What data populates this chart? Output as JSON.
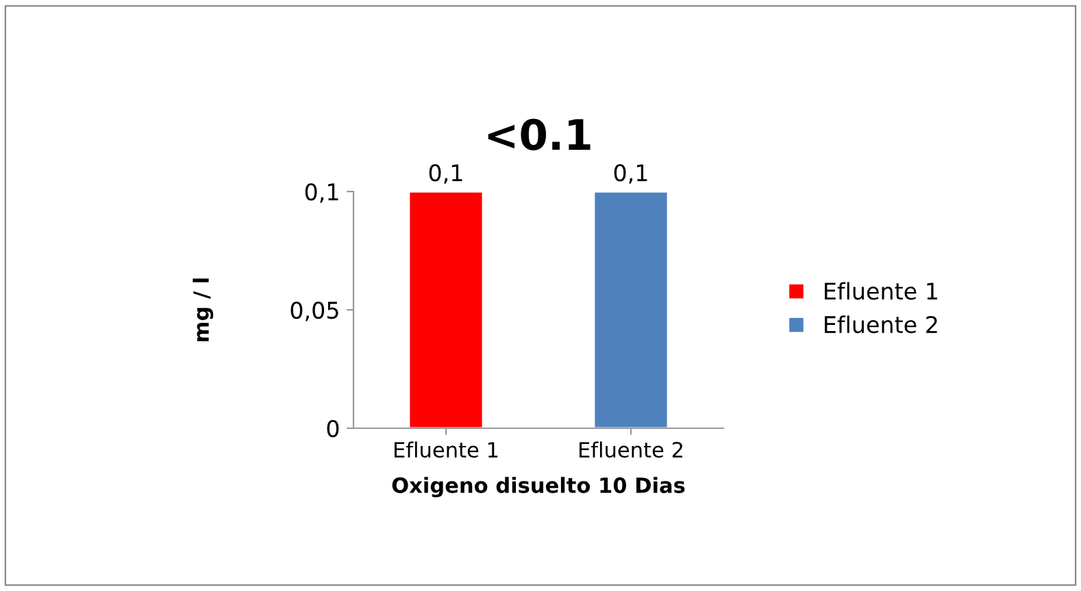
{
  "chart_data": {
    "type": "bar",
    "title": "<0.1",
    "xlabel": "Oxigeno disuelto 10 Dias",
    "ylabel": "mg / l",
    "categories": [
      "Efluente 1",
      "Efluente 2"
    ],
    "series": [
      {
        "name": "Efluente 1",
        "color": "#ff0000",
        "values": [
          0.1,
          null
        ],
        "value_labels": [
          "0,1",
          null
        ]
      },
      {
        "name": "Efluente 2",
        "color": "#4f81bd",
        "values": [
          null,
          0.1
        ],
        "value_labels": [
          null,
          "0,1"
        ]
      }
    ],
    "grid": false,
    "ylim": [
      0,
      0.1
    ],
    "yticks": [
      {
        "value": 0,
        "label": "0"
      },
      {
        "value": 0.05,
        "label": "0,05"
      },
      {
        "value": 0.1,
        "label": "0,1"
      }
    ],
    "legend": "right"
  }
}
